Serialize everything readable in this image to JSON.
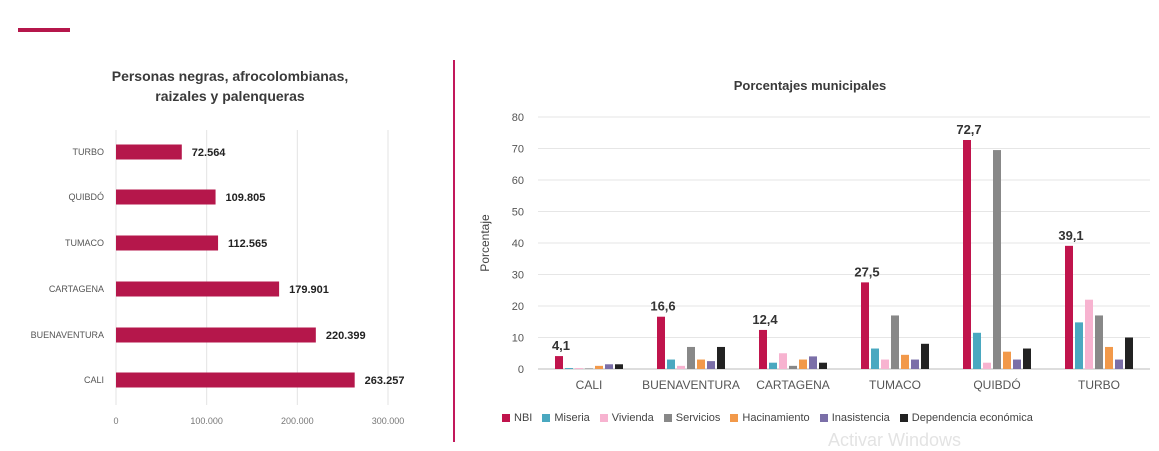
{
  "colors": {
    "accent": "#b5174b",
    "divider": "#c2185b"
  },
  "watermark": "Activar Windows",
  "chart_data": [
    {
      "type": "bar",
      "orientation": "horizontal",
      "title_lines": [
        "Personas negras, afrocolombianas,",
        "raizales y palenqueras"
      ],
      "categories": [
        "TURBO",
        "QUIBDÓ",
        "TUMACO",
        "CARTAGENA",
        "BUENAVENTURA",
        "CALI"
      ],
      "category_labels": [
        "TURBO",
        "QUIBDÓ",
        "TUMACO",
        "CARTAGENA",
        "BUENAVENTURA",
        "CALI"
      ],
      "values": [
        72564,
        109805,
        112565,
        179901,
        220399,
        263257
      ],
      "value_labels": [
        "72.564",
        "109.805",
        "112.565",
        "179.901",
        "220.399",
        "263.257"
      ],
      "xlim": [
        0,
        300000
      ],
      "x_ticks": [
        0,
        100000,
        200000,
        300000
      ],
      "x_tick_labels": [
        "0",
        "100.000",
        "200.000",
        "300.000"
      ],
      "bar_color": "#b5174b",
      "grid": true
    },
    {
      "type": "bar",
      "title": "Porcentajes municipales",
      "ylabel": "Porcentaje",
      "ylim": [
        0,
        80
      ],
      "y_ticks": [
        0,
        10,
        20,
        30,
        40,
        50,
        60,
        70,
        80
      ],
      "categories": [
        "CALI",
        "BUENAVENTURA",
        "CARTAGENA",
        "TUMACO",
        "QUIBDÓ",
        "TURBO"
      ],
      "series": [
        {
          "name": "NBI",
          "color": "#c0144c",
          "values": [
            4.1,
            16.6,
            12.4,
            27.5,
            72.7,
            39.1
          ]
        },
        {
          "name": "Miseria",
          "color": "#4aa8c0",
          "values": [
            0.3,
            3.0,
            2.0,
            6.5,
            11.5,
            14.8
          ]
        },
        {
          "name": "Vivienda",
          "color": "#f7b3d0",
          "values": [
            0.3,
            1.0,
            5.0,
            3.0,
            2.0,
            22.0
          ]
        },
        {
          "name": "Servicios",
          "color": "#888888",
          "values": [
            0.2,
            7.0,
            1.0,
            17.0,
            69.5,
            17.0
          ]
        },
        {
          "name": "Hacinamiento",
          "color": "#f2994a",
          "values": [
            1.0,
            3.0,
            3.0,
            4.5,
            5.5,
            7.0
          ]
        },
        {
          "name": "Inasistencia",
          "color": "#7b6fa8",
          "values": [
            1.5,
            2.5,
            4.0,
            3.0,
            3.0,
            3.0
          ]
        },
        {
          "name": "Dependencia económica",
          "color": "#222222",
          "values": [
            1.5,
            7.0,
            2.0,
            8.0,
            6.5,
            10.0
          ]
        }
      ],
      "data_labels": [
        "4,1",
        "16,6",
        "12,4",
        "27,5",
        "72,7",
        "39,1"
      ],
      "legend_position": "bottom",
      "grid": true
    }
  ]
}
